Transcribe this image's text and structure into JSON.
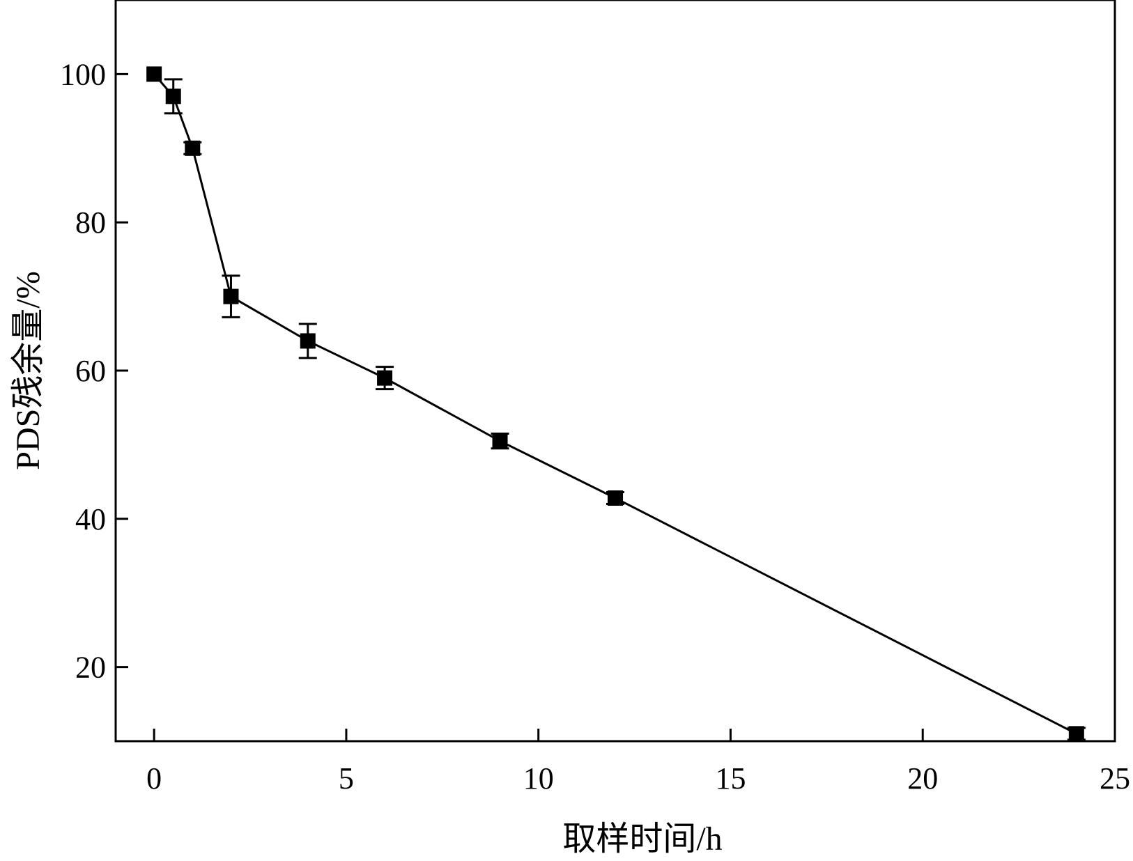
{
  "chart_data": {
    "type": "line",
    "title": "",
    "xlabel": "取样时间/h",
    "ylabel": "PDS残余量/%",
    "xlim": [
      -1,
      25
    ],
    "ylim": [
      10,
      110
    ],
    "xticks": [
      0,
      5,
      10,
      15,
      20,
      25
    ],
    "yticks": [
      20,
      40,
      60,
      80,
      100
    ],
    "grid": false,
    "legend": "none",
    "series": [
      {
        "marker": "square",
        "color": "#000000",
        "x": [
          0,
          0.5,
          1,
          2,
          4,
          6,
          9,
          12,
          24
        ],
        "y": [
          100,
          97,
          90,
          70,
          64,
          59,
          50.5,
          42.8,
          11
        ],
        "error": [
          0,
          2.3,
          0.8,
          2.8,
          2.3,
          1.5,
          1.0,
          0.8,
          0.8
        ]
      }
    ]
  }
}
